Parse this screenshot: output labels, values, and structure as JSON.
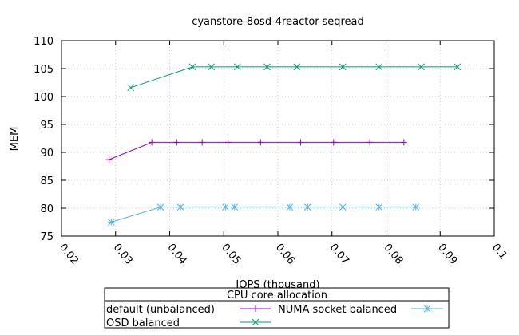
{
  "chart_data": {
    "type": "line",
    "title": "cyanstore-8osd-4reactor-seqread",
    "xlabel": "IOPS (thousand)",
    "ylabel": "MEM",
    "xlim": [
      0.02,
      0.1
    ],
    "ylim": [
      75,
      110
    ],
    "xticks": [
      "0.02",
      "0.03",
      "0.04",
      "0.05",
      "0.06",
      "0.07",
      "0.08",
      "0.09",
      "0.1"
    ],
    "yticks": [
      "75",
      "80",
      "85",
      "90",
      "95",
      "100",
      "105",
      "110"
    ],
    "grid": true,
    "legend": {
      "title": "CPU core allocation",
      "placement": "bottom-center"
    },
    "series": [
      {
        "name": "default (unbalanced)",
        "color": "#9400d3",
        "marker": "plus",
        "x": [
          0.0288,
          0.0367,
          0.0413,
          0.046,
          0.0508,
          0.0568,
          0.0642,
          0.0703,
          0.077,
          0.0833
        ],
        "y": [
          88.7,
          91.8,
          91.8,
          91.8,
          91.8,
          91.8,
          91.8,
          91.8,
          91.8,
          91.8
        ]
      },
      {
        "name": "NUMA socket balanced",
        "color": "#56b4e9",
        "marker": "star",
        "x": [
          0.0292,
          0.0383,
          0.042,
          0.0503,
          0.052,
          0.0622,
          0.0655,
          0.072,
          0.0787,
          0.0855
        ],
        "y": [
          77.5,
          80.2,
          80.2,
          80.2,
          80.2,
          80.2,
          80.2,
          80.2,
          80.2,
          80.2
        ]
      },
      {
        "name": "OSD balanced",
        "color": "#009e73",
        "marker": "cross",
        "x": [
          0.0328,
          0.0442,
          0.0477,
          0.0525,
          0.058,
          0.0635,
          0.072,
          0.0787,
          0.0865,
          0.0932
        ],
        "y": [
          101.6,
          105.3,
          105.3,
          105.3,
          105.3,
          105.3,
          105.3,
          105.3,
          105.3,
          105.3
        ]
      }
    ]
  }
}
